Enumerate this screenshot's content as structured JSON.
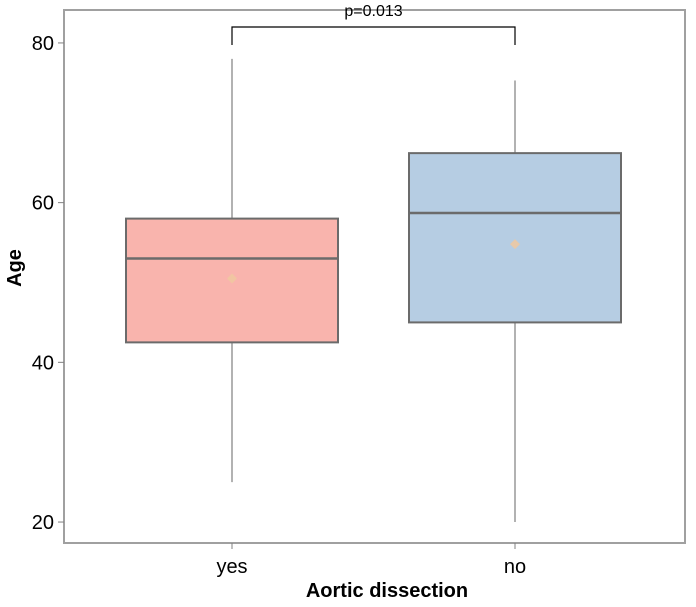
{
  "chart_data": {
    "type": "boxplot",
    "title": "",
    "xlabel": "Aortic dissection",
    "ylabel": "Age",
    "ylim": [
      17.5,
      84
    ],
    "yticks": [
      20,
      40,
      60,
      80
    ],
    "grid": false,
    "legend": "none",
    "categories": [
      "yes",
      "no"
    ],
    "boxes": [
      {
        "category": "yes",
        "whisker_low": 25,
        "q1": 42.5,
        "median": 53,
        "q3": 58,
        "whisker_high": 78,
        "mean": 50.5,
        "fill": "#f9b4ad"
      },
      {
        "category": "no",
        "whisker_low": 20,
        "q1": 45,
        "median": 58.7,
        "q3": 66.2,
        "whisker_high": 75.3,
        "mean": 54.8,
        "fill": "#b6cde3"
      }
    ],
    "annotation": {
      "text": "p=0.013",
      "between": [
        "yes",
        "no"
      ],
      "y": 82
    },
    "colors": {
      "box_stroke": "#6b6b6b",
      "whisker": "#999999",
      "mean_marker": "#f0c8a0",
      "frame": "#a0a0a0"
    }
  }
}
